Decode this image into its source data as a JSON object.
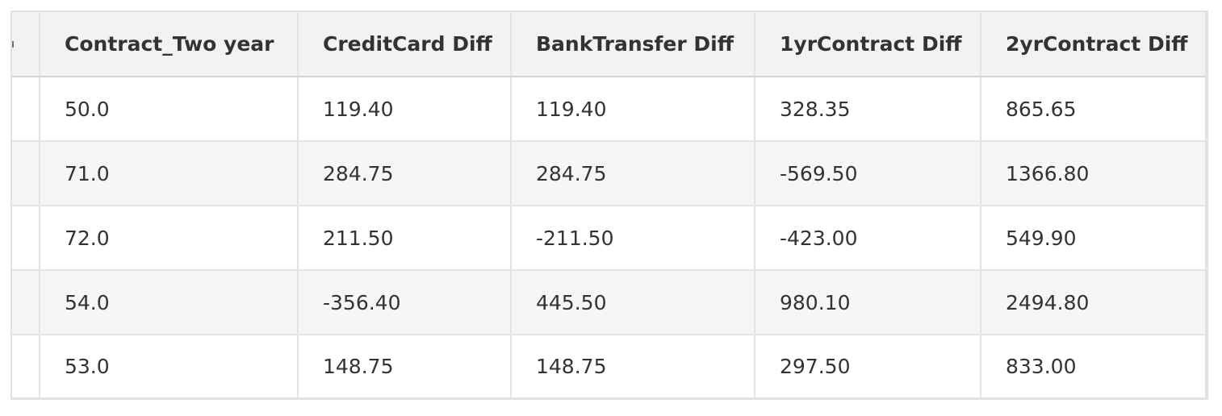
{
  "table": {
    "columns": [
      "Contract_Two year",
      "CreditCard Diff",
      "BankTransfer Diff",
      "1yrContract Diff",
      "2yrContract Diff"
    ],
    "rows": [
      [
        "50.0",
        "119.40",
        "119.40",
        "328.35",
        "865.65"
      ],
      [
        "71.0",
        "284.75",
        "284.75",
        "-569.50",
        "1366.80"
      ],
      [
        "72.0",
        "211.50",
        "-211.50",
        "-423.00",
        "549.90"
      ],
      [
        "54.0",
        "-356.40",
        "445.50",
        "980.10",
        "2494.80"
      ],
      [
        "53.0",
        "148.75",
        "148.75",
        "297.50",
        "833.00"
      ]
    ]
  }
}
